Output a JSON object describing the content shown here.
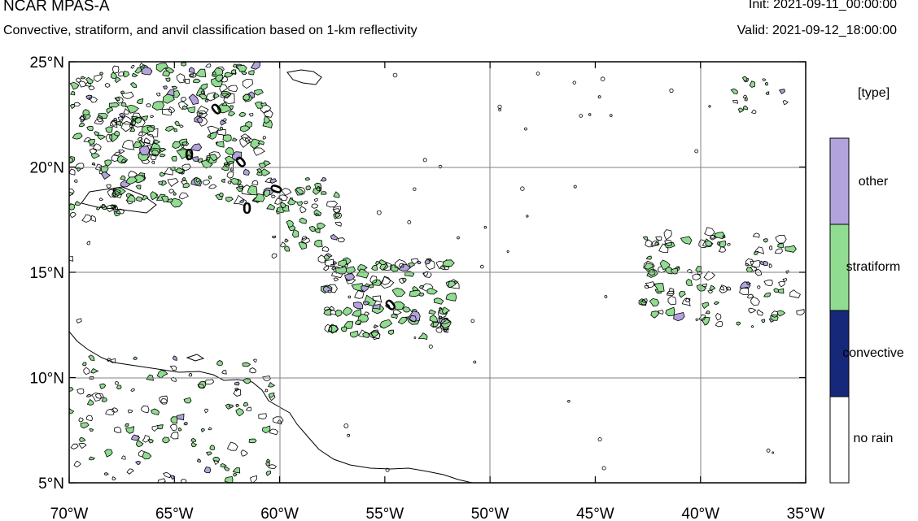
{
  "header": {
    "title": "NCAR MPAS-A",
    "subtitle": "Convective, stratiform, and anvil classification based on 1-km reflectivity",
    "init": "Init: 2021-09-11_00:00:00",
    "valid": "Valid: 2021-09-12_18:00:00"
  },
  "map": {
    "lon_range": [
      -70,
      -35
    ],
    "lat_range": [
      5,
      25
    ],
    "lon_ticks": [
      {
        "value": -70,
        "label": "70°W"
      },
      {
        "value": -65,
        "label": "65°W"
      },
      {
        "value": -60,
        "label": "60°W"
      },
      {
        "value": -55,
        "label": "55°W"
      },
      {
        "value": -50,
        "label": "50°W"
      },
      {
        "value": -45,
        "label": "45°W"
      },
      {
        "value": -40,
        "label": "40°W"
      },
      {
        "value": -35,
        "label": "35°W"
      }
    ],
    "lat_ticks": [
      {
        "value": 25,
        "label": "25°N"
      },
      {
        "value": 20,
        "label": "20°N"
      },
      {
        "value": 15,
        "label": "15°N"
      },
      {
        "value": 10,
        "label": "10°N"
      },
      {
        "value": 5,
        "label": "5°N"
      }
    ],
    "grid_lon": [
      -60,
      -50,
      -40
    ],
    "grid_lat": [
      20,
      15,
      10
    ],
    "contour_labels": [
      "0",
      "0",
      "0",
      "0",
      "0",
      "0"
    ],
    "colors": {
      "other": "#b3a3dc",
      "stratiform": "#90dc90",
      "convective": "#16287a",
      "no_rain": "#ffffff",
      "outline": "#000000",
      "grid": "#808080"
    }
  },
  "legend": {
    "title": "[type]",
    "categories": [
      {
        "name": "other",
        "color": "#b3a3dc"
      },
      {
        "name": "stratiform",
        "color": "#90dc90"
      },
      {
        "name": "convective",
        "color": "#16287a"
      },
      {
        "name": "no rain",
        "color": "#ffffff"
      }
    ]
  }
}
